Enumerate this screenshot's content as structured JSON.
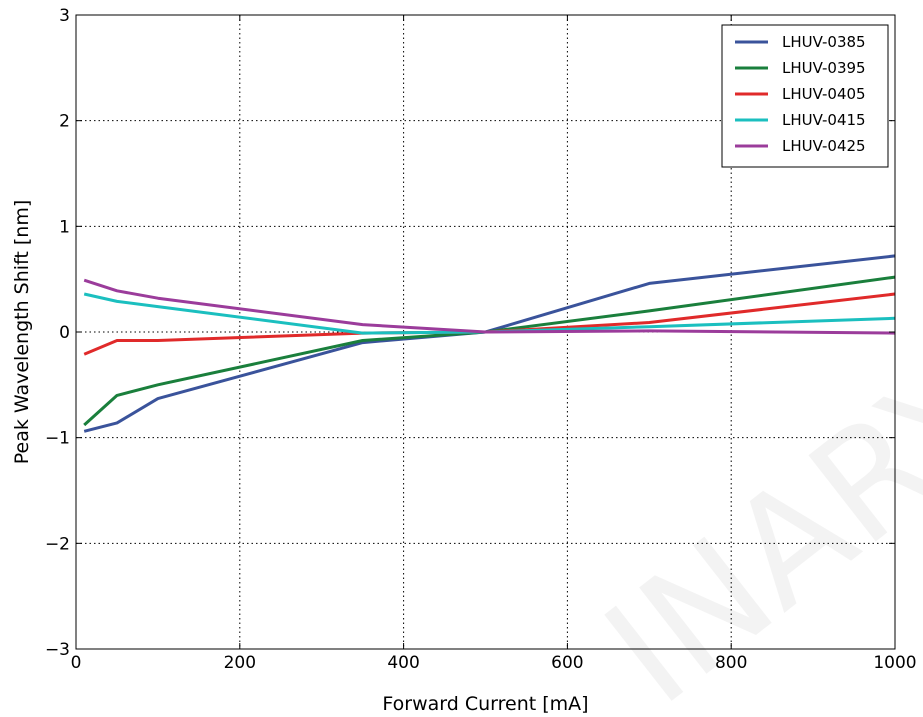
{
  "chart_data": {
    "type": "line",
    "title": "",
    "xlabel": "Forward Current [mA]",
    "ylabel": "Peak Wavelength Shift [nm]",
    "xlim": [
      0,
      1000
    ],
    "ylim": [
      -3,
      3
    ],
    "xticks": [
      0,
      200,
      400,
      600,
      800,
      1000
    ],
    "xtick_labels": [
      "0",
      "200",
      "400",
      "600",
      "800",
      "1000"
    ],
    "yticks": [
      -3,
      -2,
      -1,
      0,
      1,
      2,
      3
    ],
    "ytick_labels": [
      "−3",
      "−2",
      "−1",
      "0",
      "1",
      "2",
      "3"
    ],
    "grid": true,
    "legend_position": "top-right",
    "series": [
      {
        "name": "LHUV-0385",
        "color": "#3a539b",
        "x": [
          10,
          50,
          100,
          350,
          500,
          700,
          1000
        ],
        "y": [
          -0.94,
          -0.86,
          -0.63,
          -0.1,
          0.0,
          0.46,
          0.72
        ]
      },
      {
        "name": "LHUV-0395",
        "color": "#1a7f3c",
        "x": [
          10,
          50,
          100,
          350,
          500,
          700,
          1000
        ],
        "y": [
          -0.88,
          -0.6,
          -0.5,
          -0.08,
          0.0,
          0.2,
          0.52
        ]
      },
      {
        "name": "LHUV-0405",
        "color": "#e02a2a",
        "x": [
          10,
          50,
          100,
          350,
          500,
          700,
          1000
        ],
        "y": [
          -0.21,
          -0.08,
          -0.08,
          -0.01,
          0.0,
          0.09,
          0.36
        ]
      },
      {
        "name": "LHUV-0415",
        "color": "#1bbfbf",
        "x": [
          10,
          50,
          100,
          350,
          500,
          700,
          1000
        ],
        "y": [
          0.36,
          0.29,
          0.24,
          -0.01,
          0.0,
          0.05,
          0.13
        ]
      },
      {
        "name": "LHUV-0425",
        "color": "#9b3c9b",
        "x": [
          10,
          50,
          100,
          350,
          500,
          700,
          1000
        ],
        "y": [
          0.49,
          0.39,
          0.32,
          0.07,
          0.0,
          0.01,
          -0.01
        ]
      }
    ]
  }
}
